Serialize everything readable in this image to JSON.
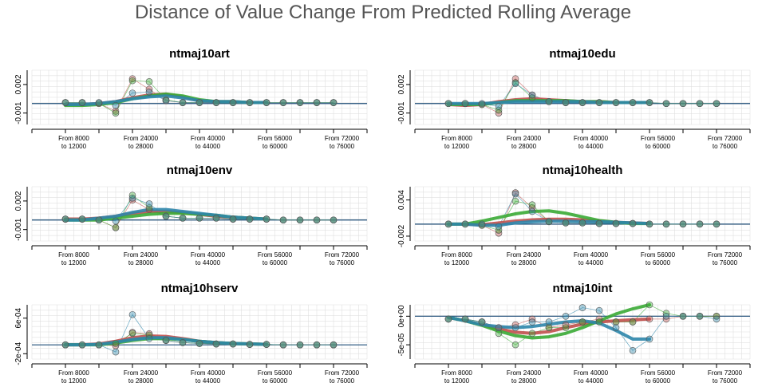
{
  "figure": {
    "title": "Distance of Value Change From Predicted Rolling Average",
    "colors": {
      "red": "#c0504d",
      "green": "#3aaa35",
      "blue": "#2e86ab",
      "grey": "#888888",
      "grid": "#e0e0e0",
      "ref": "#1f4e79"
    }
  },
  "chart_data": [
    {
      "type": "line",
      "title": "ntmaj10art",
      "x_tick_labels": [
        [
          "From 8000",
          "to 12000"
        ],
        [
          "From 24000",
          "to 28000"
        ],
        [
          "From 40000",
          "to 44000"
        ],
        [
          "From 56000",
          "to 60000"
        ],
        [
          "From 72000",
          "to 76000"
        ]
      ],
      "y_tick_labels": [
        "-0.001",
        "0.002"
      ],
      "ylim": [
        -0.0022,
        0.0035
      ],
      "x": [
        8000,
        12000,
        16000,
        20000,
        24000,
        28000,
        32000,
        36000,
        40000,
        44000,
        48000,
        52000,
        56000,
        60000,
        64000,
        68000,
        72000
      ],
      "series": [
        {
          "color": "red",
          "points": [
            0.0001,
            0.0001,
            0.0,
            -0.0008,
            0.0026,
            0.0015,
            0.0003,
            0.0001,
            0.0001,
            0.0001,
            0.0001,
            0.0001,
            0.0001,
            0.0001,
            0.0001,
            0.0001,
            0.0001
          ],
          "trend": [
            -0.0001,
            -0.0001,
            0.0,
            0.0002,
            0.0006,
            0.0009,
            0.001,
            0.0007,
            0.0003,
            0.0002,
            0.0002,
            0.0001,
            0.0001
          ]
        },
        {
          "color": "green",
          "points": [
            0.0001,
            0.0001,
            0.0,
            -0.001,
            0.0024,
            0.0023,
            0.0004,
            0.0001,
            0.0001,
            0.0001,
            0.0001,
            0.0001,
            0.0001,
            0.0001,
            0.0001,
            0.0001,
            0.0001
          ],
          "trend": [
            -0.0002,
            -0.0002,
            -0.0001,
            0.0001,
            0.0005,
            0.0008,
            0.001,
            0.0008,
            0.0004,
            0.0002,
            0.0002,
            0.0001,
            0.0001
          ]
        },
        {
          "color": "blue",
          "points": [
            0.0001,
            0.0001,
            0.0001,
            -0.0002,
            0.0011,
            0.0012,
            0.0003,
            0.0001,
            0.0001,
            0.0001,
            0.0001,
            0.0001,
            0.0001,
            0.0001,
            0.0001,
            0.0001,
            0.0001
          ],
          "trend": [
            -0.0001,
            -0.0001,
            0.0,
            0.0002,
            0.0005,
            0.0007,
            0.0008,
            0.0006,
            0.0003,
            0.0002,
            0.0002,
            0.0001,
            0.0001
          ]
        }
      ]
    },
    {
      "type": "line",
      "title": "ntmaj10edu",
      "x_tick_labels": [
        [
          "From 8000",
          "to 12000"
        ],
        [
          "From 24000",
          "to 28000"
        ],
        [
          "From 40000",
          "to 44000"
        ],
        [
          "From 56000",
          "to 60000"
        ],
        [
          "From 72000",
          "to 76000"
        ]
      ],
      "y_tick_labels": [
        "-0.001",
        "0.002"
      ],
      "ylim": [
        -0.0022,
        0.0035
      ],
      "x": [
        8000,
        12000,
        16000,
        20000,
        24000,
        28000,
        32000,
        36000,
        40000,
        44000,
        48000,
        52000,
        56000,
        60000,
        64000,
        68000,
        72000
      ],
      "series": [
        {
          "color": "red",
          "points": [
            0.0,
            0.0,
            -0.0001,
            -0.001,
            0.0026,
            0.0009,
            0.0002,
            0.0001,
            0.0001,
            0.0001,
            0.0001,
            0.0001,
            0.0001,
            0.0,
            0.0,
            0.0,
            0.0
          ],
          "trend": [
            -0.0001,
            -0.0002,
            -0.0001,
            0.0002,
            0.0004,
            0.0005,
            0.0004,
            0.0003,
            0.0002,
            0.0002,
            0.0001,
            0.0001,
            0.0001
          ]
        },
        {
          "color": "green",
          "points": [
            0.0,
            0.0,
            -0.0001,
            -0.0007,
            0.0022,
            0.0006,
            0.0002,
            0.0001,
            0.0001,
            0.0001,
            0.0001,
            0.0001,
            0.0001,
            0.0,
            0.0,
            0.0,
            0.0
          ],
          "trend": [
            -0.0001,
            -0.0001,
            -0.0001,
            0.0001,
            0.0003,
            0.0003,
            0.0003,
            0.0003,
            0.0002,
            0.0002,
            0.0001,
            0.0001,
            0.0001
          ]
        },
        {
          "color": "blue",
          "points": [
            0.0,
            0.0,
            0.0,
            -0.0003,
            0.0021,
            0.0009,
            0.0002,
            0.0001,
            0.0001,
            0.0001,
            0.0001,
            0.0001,
            0.0001,
            0.0,
            0.0,
            0.0,
            0.0
          ],
          "trend": [
            0.0,
            0.0,
            0.0,
            0.0001,
            0.0002,
            0.0002,
            0.0002,
            0.0002,
            0.0002,
            0.0001,
            0.0001,
            0.0001,
            0.0001
          ]
        }
      ]
    },
    {
      "type": "line",
      "title": "ntmaj10env",
      "x_tick_labels": [
        [
          "From 8000",
          "to 12000"
        ],
        [
          "From 24000",
          "to 28000"
        ],
        [
          "From 40000",
          "to 44000"
        ],
        [
          "From 56000",
          "to 60000"
        ],
        [
          "From 72000",
          "to 76000"
        ]
      ],
      "y_tick_labels": [
        "-0.001",
        "0.002"
      ],
      "ylim": [
        -0.0022,
        0.0035
      ],
      "x": [
        8000,
        12000,
        16000,
        20000,
        24000,
        28000,
        32000,
        36000,
        40000,
        44000,
        48000,
        52000,
        56000,
        60000,
        64000,
        68000,
        72000
      ],
      "series": [
        {
          "color": "red",
          "points": [
            0.0001,
            0.0001,
            0.0,
            -0.0008,
            0.0021,
            0.0011,
            0.0004,
            0.0002,
            0.0002,
            0.0002,
            0.0001,
            0.0001,
            0.0001,
            0.0,
            0.0,
            0.0,
            0.0
          ],
          "trend": [
            0.0001,
            0.0001,
            0.0002,
            0.0004,
            0.0007,
            0.0009,
            0.0009,
            0.0008,
            0.0006,
            0.0004,
            0.0003,
            0.0002,
            0.0001
          ]
        },
        {
          "color": "green",
          "points": [
            0.0001,
            0.0001,
            0.0,
            -0.0008,
            0.0026,
            0.0013,
            0.0004,
            0.0002,
            0.0002,
            0.0002,
            0.0001,
            0.0001,
            0.0001,
            0.0,
            0.0,
            0.0,
            0.0
          ],
          "trend": [
            0.0,
            0.0,
            0.0,
            0.0002,
            0.0004,
            0.0006,
            0.0007,
            0.0007,
            0.0006,
            0.0005,
            0.0003,
            0.0002,
            0.0001
          ]
        },
        {
          "color": "blue",
          "points": [
            0.0001,
            0.0001,
            0.0,
            -0.0001,
            0.0023,
            0.0017,
            0.0004,
            0.0002,
            0.0002,
            0.0002,
            0.0001,
            0.0001,
            0.0001,
            0.0,
            0.0,
            0.0,
            0.0
          ],
          "trend": [
            0.0,
            0.0,
            0.0002,
            0.0004,
            0.0008,
            0.0011,
            0.0011,
            0.0009,
            0.0007,
            0.0005,
            0.0003,
            0.0002,
            0.0001
          ]
        }
      ]
    },
    {
      "type": "line",
      "title": "ntmaj10health",
      "x_tick_labels": [
        [
          "From 8000",
          "to 12000"
        ],
        [
          "From 24000",
          "to 28000"
        ],
        [
          "From 40000",
          "to 44000"
        ],
        [
          "From 56000",
          "to 60000"
        ],
        [
          "From 72000",
          "to 76000"
        ]
      ],
      "y_tick_labels": [
        "-0.002",
        "0.004"
      ],
      "ylim": [
        -0.0028,
        0.0062
      ],
      "x": [
        8000,
        12000,
        16000,
        20000,
        24000,
        28000,
        32000,
        36000,
        40000,
        44000,
        48000,
        52000,
        56000,
        60000,
        64000,
        68000,
        72000
      ],
      "series": [
        {
          "color": "red",
          "points": [
            0.0,
            0.0,
            -0.0002,
            -0.0015,
            0.0052,
            0.0027,
            0.0004,
            0.0002,
            0.0002,
            0.0001,
            0.0001,
            0.0001,
            0.0,
            0.0,
            0.0,
            0.0,
            0.0
          ],
          "trend": [
            0.0,
            0.0,
            -0.0001,
            0.0002,
            0.0005,
            0.0007,
            0.0008,
            0.0008,
            0.0007,
            0.0005,
            0.0003,
            0.0002,
            0.0001
          ]
        },
        {
          "color": "green",
          "points": [
            0.0,
            0.0,
            -0.0002,
            -0.001,
            0.0038,
            0.0032,
            0.0004,
            0.0002,
            0.0002,
            0.0001,
            0.0001,
            0.0001,
            0.0,
            0.0,
            0.0,
            0.0,
            0.0
          ],
          "trend": [
            0.0,
            0.0,
            0.0005,
            0.0011,
            0.0017,
            0.0021,
            0.0022,
            0.0018,
            0.0012,
            0.0006,
            0.0003,
            0.0001,
            0.0001
          ]
        },
        {
          "color": "blue",
          "points": [
            0.0,
            0.0,
            0.0,
            -0.0004,
            0.005,
            0.0021,
            0.0004,
            0.0002,
            0.0002,
            0.0001,
            0.0001,
            0.0001,
            0.0,
            0.0,
            0.0,
            0.0,
            0.0
          ],
          "trend": [
            0.0,
            0.0,
            -0.0002,
            -0.0002,
            0.0002,
            0.0004,
            0.0005,
            0.0005,
            0.0004,
            0.0004,
            0.0003,
            0.0002,
            0.0001
          ]
        }
      ]
    },
    {
      "type": "line",
      "title": "ntmaj10hserv",
      "x_tick_labels": [
        [
          "From 8000",
          "to 12000"
        ],
        [
          "From 24000",
          "to 28000"
        ],
        [
          "From 40000",
          "to 44000"
        ],
        [
          "From 56000",
          "to 60000"
        ],
        [
          "From 72000",
          "to 76000"
        ]
      ],
      "y_tick_labels": [
        "-2e-04",
        "6e-04"
      ],
      "ylim": [
        -0.00032,
        0.0009
      ],
      "x": [
        8000,
        12000,
        16000,
        20000,
        24000,
        28000,
        32000,
        36000,
        40000,
        44000,
        48000,
        52000,
        56000,
        60000,
        64000,
        68000,
        72000
      ],
      "series": [
        {
          "color": "red",
          "points": [
            0.0,
            0.0,
            0.0,
            -2e-05,
            0.00028,
            0.00025,
            0.0001,
            5e-05,
            3e-05,
            2e-05,
            2e-05,
            1e-05,
            1e-05,
            0.0,
            0.0,
            0.0,
            0.0
          ],
          "trend": [
            0.0,
            0.0,
            2e-05,
            8e-05,
            0.00016,
            0.0002,
            0.00019,
            0.00014,
            8e-05,
            5e-05,
            3e-05,
            2e-05,
            1e-05
          ]
        },
        {
          "color": "green",
          "points": [
            0.0,
            0.0,
            0.0,
            3e-05,
            0.00026,
            0.00022,
            0.0001,
            5e-05,
            3e-05,
            2e-05,
            2e-05,
            1e-05,
            1e-05,
            0.0,
            0.0,
            0.0,
            0.0
          ],
          "trend": [
            0.0,
            0.0,
            0.0,
            4e-05,
            0.0001,
            0.00014,
            0.00014,
            0.00012,
            8e-05,
            5e-05,
            3e-05,
            2e-05,
            1e-05
          ]
        },
        {
          "color": "blue",
          "points": [
            0.0,
            0.0,
            0.0,
            -0.00016,
            0.00068,
            0.00014,
            0.0001,
            5e-05,
            3e-05,
            2e-05,
            2e-05,
            1e-05,
            1e-05,
            0.0,
            0.0,
            0.0,
            0.0
          ],
          "trend": [
            0.0,
            0.0,
            1e-05,
            6e-05,
            0.00012,
            0.00016,
            0.00016,
            0.00012,
            8e-05,
            5e-05,
            3e-05,
            2e-05,
            1e-05
          ]
        }
      ]
    },
    {
      "type": "line",
      "title": "ntmaj10int",
      "x_tick_labels": [
        [
          "From 8000",
          "to 12000"
        ],
        [
          "From 24000",
          "to 28000"
        ],
        [
          "From 40000",
          "to 44000"
        ],
        [
          "From 56000",
          "to 60000"
        ],
        [
          "From 72000",
          "to 76000"
        ]
      ],
      "y_tick_labels": [
        "-5e-05",
        "0e+00"
      ],
      "ylim": [
        -7.5e-05,
        2e-05
      ],
      "x": [
        8000,
        12000,
        16000,
        20000,
        24000,
        28000,
        32000,
        36000,
        40000,
        44000,
        48000,
        52000,
        56000,
        60000,
        64000,
        68000,
        72000
      ],
      "series": [
        {
          "color": "red",
          "points": [
            -5e-06,
            -5e-06,
            -1e-05,
            -2e-05,
            -1.5e-05,
            -5e-06,
            -2e-05,
            -1.5e-05,
            -1e-05,
            -5e-06,
            -1e-05,
            -1e-05,
            -5e-06,
            -5e-06,
            0.0,
            0.0,
            0.0
          ],
          "trend": [
            -2e-06,
            -8e-06,
            -1.5e-05,
            -2.2e-05,
            -2.8e-05,
            -3e-05,
            -2.7e-05,
            -2e-05,
            -1.4e-05,
            -1e-05,
            -8e-06,
            -6e-06,
            -5e-06
          ]
        },
        {
          "color": "green",
          "points": [
            -5e-06,
            -5e-06,
            -1e-05,
            -3e-05,
            -5e-05,
            -3e-05,
            -2e-05,
            -2e-05,
            -1e-05,
            -1e-05,
            -1e-05,
            -1e-05,
            2e-05,
            5e-06,
            0.0,
            0.0,
            0.0
          ],
          "trend": [
            -2e-06,
            -8e-06,
            -1.6e-05,
            -2.6e-05,
            -3.4e-05,
            -3.8e-05,
            -3.6e-05,
            -3e-05,
            -2e-05,
            -8e-06,
            4e-06,
            1.3e-05,
            2e-05
          ]
        },
        {
          "color": "blue",
          "points": [
            -5e-06,
            -5e-06,
            -1e-05,
            -2e-05,
            -2e-05,
            -1e-05,
            -1e-05,
            0.0,
            1.5e-05,
            1e-05,
            -2e-05,
            -6e-05,
            -4e-05,
            0.0,
            0.0,
            0.0,
            -5e-06
          ]
        },
        {
          "color": "blue",
          "points": [],
          "trend": [
            -2e-06,
            -8e-06,
            -1.5e-05,
            -1.8e-05,
            -2e-05,
            -1.8e-05,
            -1.4e-05,
            -1e-05,
            -8e-06,
            -1.2e-05,
            -2.5e-05,
            -4e-05,
            -4e-05
          ]
        }
      ]
    }
  ]
}
